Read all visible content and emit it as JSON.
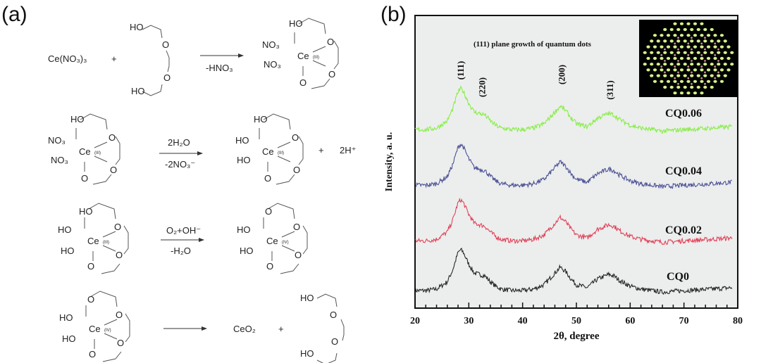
{
  "panel_a": {
    "label": "(a)",
    "row1": {
      "reactant": "Ce(NO₃)₃",
      "plus": "+",
      "glycol_ho_top": "HO",
      "glycol_o1": "O",
      "glycol_o2": "O",
      "glycol_ho_bottom": "HO",
      "arrow_below": "-HNO₃",
      "product": {
        "top": "HO",
        "l1": "NO₃",
        "ce": "Ce",
        "ox": "(III)",
        "l2": "NO₃",
        "o1": "O",
        "o2": "O",
        "o3": "O"
      }
    },
    "row2": {
      "reactant": {
        "top": "HO",
        "l1": "NO₃",
        "ce": "Ce",
        "ox": "(III)",
        "l2": "NO₃",
        "o1": "O",
        "o2": "O",
        "o3": "O"
      },
      "arrow_above": "2H₂O",
      "arrow_below": "-2NO₃⁻",
      "product": {
        "top": "HO",
        "l1": "HO",
        "ce": "Ce",
        "ox": "(III)",
        "l2": "HO",
        "o1": "O",
        "o2": "O",
        "o3": "O"
      },
      "plus": "+",
      "byproduct": "2H⁺"
    },
    "row3": {
      "reactant": {
        "top": "HO",
        "l1": "HO",
        "ce": "Ce",
        "ox": "(III)",
        "l2": "HO",
        "o1": "O",
        "o2": "O",
        "o3": "O"
      },
      "arrow_above": "O₂+OH⁻",
      "arrow_below": "-H₂O",
      "product": {
        "top": "O",
        "l1": "HO",
        "ce": "Ce",
        "ox": "(IV)",
        "l2": "HO",
        "o1": "O",
        "o2": "O",
        "o3": "O"
      }
    },
    "row4": {
      "reactant": {
        "top": "O",
        "l1": "HO",
        "ce": "Ce",
        "ox": "(IV)",
        "l2": "HO",
        "o1": "O",
        "o2": "O",
        "o3": "O"
      },
      "product": "CeO₂",
      "plus": "+",
      "glycol_ho_top": "HO",
      "glycol_o1": "O",
      "glycol_o2": "O",
      "glycol_ho_bottom": "HO"
    }
  },
  "chart_data": {
    "type": "line",
    "panel_label": "(b)",
    "title": "",
    "annotation": "(111) plane growth of quantum dots",
    "xlabel": "2θ, degree",
    "ylabel": "Intensity, a. u.",
    "xlim": [
      20,
      80
    ],
    "ylim": [
      0,
      100
    ],
    "xticks": [
      "20",
      "30",
      "40",
      "50",
      "60",
      "70",
      "80"
    ],
    "grid": false,
    "peak_labels": [
      {
        "text": "(111)",
        "x": 28.5
      },
      {
        "text": "(220)",
        "x": 32.5
      },
      {
        "text": "(200)",
        "x": 47.3
      },
      {
        "text": "(311)",
        "x": 56.3
      }
    ],
    "x": [
      20,
      22,
      24,
      26,
      27,
      28,
      28.5,
      29,
      30,
      31,
      32,
      33,
      34,
      35,
      36,
      38,
      40,
      42,
      44,
      46,
      47,
      48,
      49,
      50,
      52,
      54,
      56,
      57,
      58,
      60,
      62,
      64,
      66,
      70,
      75,
      79
    ],
    "series": [
      {
        "name": "CQ0",
        "color": "#111111",
        "values": [
          6,
          6,
          6.5,
          9,
          13,
          19,
          20,
          19,
          15,
          12,
          11.5,
          11,
          9,
          7.5,
          6.5,
          6,
          6,
          6.5,
          8,
          12,
          14,
          12.5,
          10,
          8,
          7,
          10,
          11.5,
          11,
          9.5,
          7.5,
          6.5,
          6,
          5.5,
          6,
          6.5,
          7
        ]
      },
      {
        "name": "CQ0.02",
        "color": "#e0304a",
        "values": [
          23,
          23,
          23.5,
          26,
          30,
          36,
          37,
          36,
          32,
          29,
          28.5,
          28,
          26,
          24.5,
          23.5,
          23,
          23,
          23.5,
          25,
          29,
          31,
          29.5,
          27,
          25,
          24,
          27,
          28.5,
          28,
          26.5,
          24.5,
          23.5,
          23,
          22.5,
          23,
          23.5,
          24
        ]
      },
      {
        "name": "CQ0.04",
        "color": "#3b3f8c",
        "values": [
          42,
          42,
          42.5,
          45,
          49,
          55,
          56,
          55,
          51,
          48,
          47.5,
          47,
          45,
          43.5,
          42.5,
          42,
          42,
          42.5,
          44,
          48,
          50,
          48.5,
          46,
          44,
          43,
          46,
          47.5,
          47,
          45.5,
          43.5,
          42.5,
          42,
          41.5,
          42,
          42.5,
          43
        ]
      },
      {
        "name": "CQ0.06",
        "color": "#7fec3a",
        "values": [
          61,
          61,
          61.5,
          64,
          68,
          74,
          75,
          74,
          70,
          67,
          66.5,
          66,
          64,
          62.5,
          61.5,
          61,
          61,
          61.5,
          63,
          67,
          69,
          67.5,
          65,
          63,
          62,
          65,
          66.5,
          66,
          64.5,
          62.5,
          61.5,
          61,
          60.5,
          61,
          61.5,
          62
        ]
      }
    ],
    "inset": {
      "background": "#000000",
      "dot_color": "#d4f08a",
      "minor_dot_color": "#c98a9a"
    }
  }
}
